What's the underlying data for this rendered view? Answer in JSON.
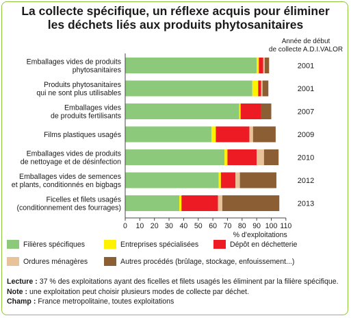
{
  "title_line1": "La collecte spécifique, un réflexe acquis pour éliminer",
  "title_line2": "les déchets liés aux produits phytosanitaires",
  "colors": {
    "filieres": "#8cc97a",
    "entreprises": "#fff200",
    "decheterie": "#ed1c24",
    "menageres": "#e8c39a",
    "autres": "#8b5e34",
    "frame": "#8cc63f"
  },
  "chart_data": {
    "type": "bar",
    "orientation": "horizontal",
    "stacked": true,
    "categories": [
      [
        "Emballages vides de produits",
        "phytosanitaires"
      ],
      [
        "Produits phytosanitaires",
        "qui ne sont plus utilisables"
      ],
      [
        "Emballages vides",
        "de produits fertilisants"
      ],
      [
        "Films plastiques usagés"
      ],
      [
        "Emballages vides de produits",
        "de nettoyage et de désinfection"
      ],
      [
        "Emballages vides de semences",
        "et plants, conditionnés en bigbags"
      ],
      [
        "Ficelles et filets usagés",
        "(conditionnement des fourrages)"
      ]
    ],
    "years_header": [
      "Année de début",
      "de collecte A.D.I.VALOR"
    ],
    "years": [
      "2001",
      "2001",
      "2007",
      "2009",
      "2010",
      "2012",
      "2013"
    ],
    "series": [
      {
        "name": "Filières spécifiques",
        "values": [
          90,
          87,
          78,
          59,
          68,
          64,
          37
        ]
      },
      {
        "name": "Entreprises spécialisées",
        "values": [
          1.5,
          4,
          1,
          3,
          2,
          1.5,
          1.5
        ]
      },
      {
        "name": "Dépôt en déchetterie",
        "values": [
          3,
          2,
          14,
          23,
          20,
          10,
          25
        ]
      },
      {
        "name": "Ordures ménagères",
        "values": [
          1,
          1,
          0,
          2.5,
          5,
          3,
          3
        ]
      },
      {
        "name": "Autres procédés (brûlage, stockage, enfouissement...)",
        "values": [
          3,
          4,
          7,
          15.5,
          10,
          25,
          39
        ]
      }
    ],
    "xlim": [
      0,
      110
    ],
    "xticks": [
      0,
      10,
      20,
      30,
      40,
      50,
      60,
      70,
      80,
      90,
      100,
      110
    ],
    "xlabel": "% d'exploitations",
    "grid": false
  },
  "notes": {
    "lecture_label": "Lecture :",
    "lecture_text": " 37 % des exploitations ayant des ficelles et filets usagés les éliminent par la filière spécifique.",
    "note_label": "Note :",
    "note_text": " une exploitation peut choisir plusieurs modes de collecte par déchet.",
    "champ_label": "Champ :",
    "champ_text": " France metropolitaine, toutes exploitations"
  }
}
